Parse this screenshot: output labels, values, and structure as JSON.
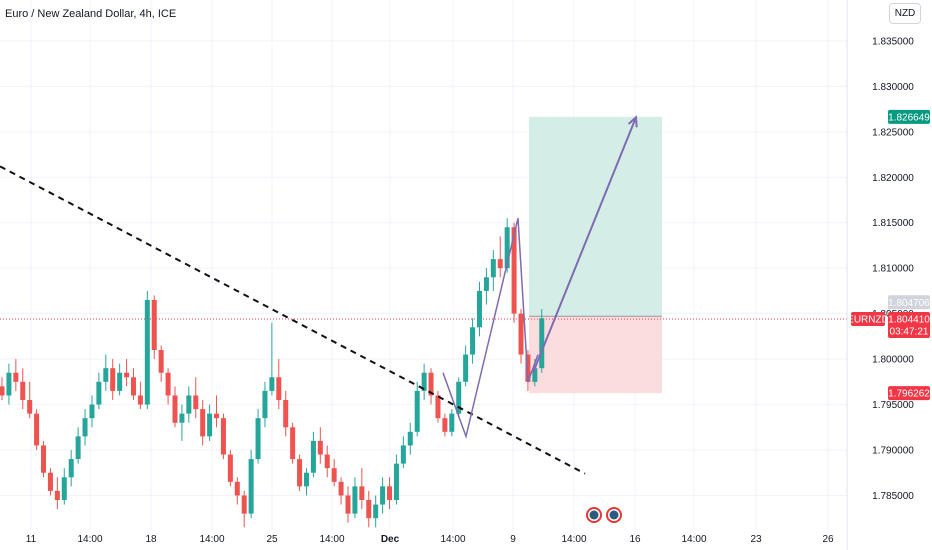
{
  "header": {
    "title": "Euro / New Zealand Dollar, 4h, ICE",
    "currency": "NZD"
  },
  "colors": {
    "up": "#26a69a",
    "down": "#ef5350",
    "target_zone": "#d4ede7",
    "stop_zone": "#fbdcdf",
    "projection": "#7e6bb1",
    "trendline": "#111111",
    "price_line": "#f23645"
  },
  "chart_data": {
    "type": "candlestick",
    "symbol": "EURNZD",
    "interval": "4h",
    "ylim": [
      1.7812,
      1.8395
    ],
    "y_ticks": [
      1.785,
      1.79,
      1.795,
      1.8,
      1.805,
      1.81,
      1.815,
      1.82,
      1.825,
      1.83,
      1.835
    ],
    "y_tick_labels": [
      "1.785000",
      "1.790000",
      "1.795000",
      "1.800000",
      "1.805000",
      "1.810000",
      "1.815000",
      "1.820000",
      "1.825000",
      "1.830000",
      "1.835000"
    ],
    "x_tick_labels": [
      "11",
      "14:00",
      "18",
      "14:00",
      "25",
      "14:00",
      "Dec",
      "14:00",
      "9",
      "14:00",
      "16",
      "14:00",
      "23",
      "26"
    ],
    "candles": [
      [
        1.797,
        1.798,
        1.7955,
        1.796
      ],
      [
        1.796,
        1.7995,
        1.795,
        1.7985
      ],
      [
        1.7985,
        1.8,
        1.7965,
        1.7975
      ],
      [
        1.7975,
        1.799,
        1.7945,
        1.7955
      ],
      [
        1.7955,
        1.7975,
        1.7935,
        1.794
      ],
      [
        1.794,
        1.7945,
        1.79,
        1.7905
      ],
      [
        1.7905,
        1.791,
        1.787,
        1.7875
      ],
      [
        1.7875,
        1.788,
        1.785,
        1.7855
      ],
      [
        1.7855,
        1.787,
        1.7835,
        1.7845
      ],
      [
        1.7845,
        1.788,
        1.784,
        1.787
      ],
      [
        1.787,
        1.79,
        1.786,
        1.789
      ],
      [
        1.789,
        1.7925,
        1.7885,
        1.7915
      ],
      [
        1.7915,
        1.7945,
        1.7905,
        1.7935
      ],
      [
        1.7935,
        1.796,
        1.7925,
        1.795
      ],
      [
        1.795,
        1.7985,
        1.7945,
        1.7975
      ],
      [
        1.7975,
        1.8005,
        1.7965,
        1.799
      ],
      [
        1.799,
        1.8,
        1.7955,
        1.7965
      ],
      [
        1.7965,
        1.7995,
        1.796,
        1.7985
      ],
      [
        1.7985,
        1.8,
        1.797,
        1.798
      ],
      [
        1.798,
        1.799,
        1.7955,
        1.796
      ],
      [
        1.796,
        1.7975,
        1.7945,
        1.795
      ],
      [
        1.795,
        1.8075,
        1.7945,
        1.8065
      ],
      [
        1.8065,
        1.807,
        1.8,
        1.801
      ],
      [
        1.801,
        1.8015,
        1.7975,
        1.7985
      ],
      [
        1.7985,
        1.799,
        1.795,
        1.796
      ],
      [
        1.796,
        1.797,
        1.7925,
        1.793
      ],
      [
        1.793,
        1.795,
        1.791,
        1.794
      ],
      [
        1.794,
        1.797,
        1.793,
        1.796
      ],
      [
        1.796,
        1.798,
        1.7935,
        1.7945
      ],
      [
        1.7945,
        1.7955,
        1.7905,
        1.7915
      ],
      [
        1.7915,
        1.795,
        1.791,
        1.794
      ],
      [
        1.794,
        1.796,
        1.7925,
        1.7935
      ],
      [
        1.7935,
        1.794,
        1.789,
        1.7895
      ],
      [
        1.7895,
        1.79,
        1.786,
        1.7865
      ],
      [
        1.7865,
        1.787,
        1.784,
        1.785
      ],
      [
        1.785,
        1.7855,
        1.7815,
        1.783
      ],
      [
        1.783,
        1.79,
        1.7825,
        1.789
      ],
      [
        1.789,
        1.7945,
        1.7885,
        1.7935
      ],
      [
        1.7935,
        1.7975,
        1.7925,
        1.7965
      ],
      [
        1.7965,
        1.804,
        1.796,
        1.798
      ],
      [
        1.798,
        1.8,
        1.7945,
        1.7955
      ],
      [
        1.7955,
        1.7965,
        1.7915,
        1.7925
      ],
      [
        1.7925,
        1.793,
        1.7885,
        1.789
      ],
      [
        1.789,
        1.7895,
        1.7855,
        1.786
      ],
      [
        1.786,
        1.788,
        1.785,
        1.7875
      ],
      [
        1.7875,
        1.792,
        1.787,
        1.791
      ],
      [
        1.791,
        1.7925,
        1.7885,
        1.7895
      ],
      [
        1.7895,
        1.7905,
        1.787,
        1.788
      ],
      [
        1.788,
        1.789,
        1.786,
        1.7865
      ],
      [
        1.7865,
        1.787,
        1.784,
        1.785
      ],
      [
        1.785,
        1.786,
        1.782,
        1.783
      ],
      [
        1.783,
        1.787,
        1.7825,
        1.786
      ],
      [
        1.786,
        1.788,
        1.7835,
        1.7845
      ],
      [
        1.7845,
        1.7855,
        1.7815,
        1.7825
      ],
      [
        1.7825,
        1.785,
        1.7815,
        1.784
      ],
      [
        1.784,
        1.787,
        1.783,
        1.786
      ],
      [
        1.786,
        1.787,
        1.7835,
        1.7845
      ],
      [
        1.7845,
        1.7895,
        1.784,
        1.7885
      ],
      [
        1.7885,
        1.7915,
        1.788,
        1.7905
      ],
      [
        1.7905,
        1.793,
        1.7895,
        1.792
      ],
      [
        1.792,
        1.7975,
        1.7915,
        1.7965
      ],
      [
        1.7965,
        1.7995,
        1.7955,
        1.7985
      ],
      [
        1.7985,
        1.799,
        1.795,
        1.796
      ],
      [
        1.796,
        1.7965,
        1.793,
        1.7935
      ],
      [
        1.7935,
        1.794,
        1.7915,
        1.792
      ],
      [
        1.792,
        1.7945,
        1.7915,
        1.794
      ],
      [
        1.794,
        1.798,
        1.7935,
        1.7975
      ],
      [
        1.7975,
        1.8015,
        1.797,
        1.8005
      ],
      [
        1.8005,
        1.8045,
        1.7995,
        1.8035
      ],
      [
        1.8035,
        1.8085,
        1.8025,
        1.8075
      ],
      [
        1.8075,
        1.81,
        1.806,
        1.809
      ],
      [
        1.809,
        1.812,
        1.8075,
        1.811
      ],
      [
        1.811,
        1.8135,
        1.809,
        1.81
      ],
      [
        1.81,
        1.8155,
        1.8095,
        1.8145
      ],
      [
        1.8145,
        1.815,
        1.804,
        1.805
      ],
      [
        1.805,
        1.8055,
        1.7995,
        1.8005
      ],
      [
        1.8005,
        1.801,
        1.7965,
        1.7975
      ],
      [
        1.7975,
        1.8,
        1.797,
        1.799
      ],
      [
        1.799,
        1.8055,
        1.7985,
        1.8045
      ]
    ],
    "last_price": 1.80441
  },
  "annotations": {
    "trendline": {
      "from": [
        0,
        1.8212
      ],
      "to": [
        0.627,
        1.7874
      ],
      "style": "dashed"
    },
    "position": {
      "entry": 1.804706,
      "target": 1.826649,
      "stop": 1.796262,
      "entry_label": "1.804706",
      "target_label": "1.826649",
      "stop_label": "1.796262"
    },
    "projection_arrow": {
      "from": 1.7985,
      "to": 1.8266
    },
    "price_tag": {
      "symbol": "EURNZD",
      "price": "1.804410",
      "countdown": "03:47:21"
    }
  }
}
